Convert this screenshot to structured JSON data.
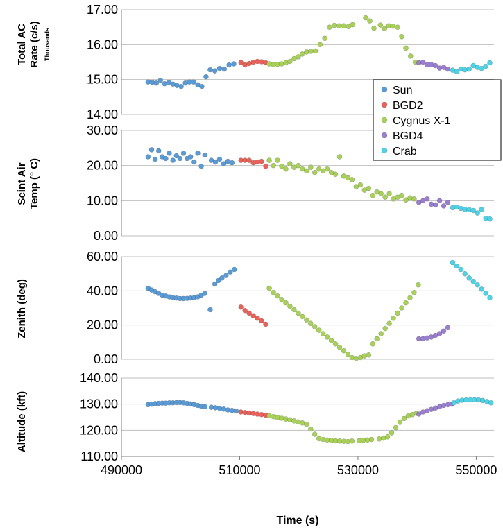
{
  "chart_data": {
    "type": "scatter",
    "xlabel": "Time (s)",
    "x_ticks": [
      "490000",
      "510000",
      "530000",
      "550000"
    ],
    "xlim": [
      490000,
      553000
    ],
    "colors": {
      "Sun": "#5b9bd5",
      "BGD2": "#e8625b",
      "Cygnus X-1": "#a9d05a",
      "BGD4": "#9a7fce",
      "Crab": "#4fd2e6"
    },
    "legend": {
      "placement": "right",
      "entries": [
        "Sun",
        "BGD2",
        "Cygnus X-1",
        "BGD4",
        "Crab"
      ]
    },
    "panels": [
      {
        "ylabel_line1": "Total AC",
        "ylabel_line2": "Rate (c/s)",
        "unit_note": "Thousands",
        "ylim": [
          14,
          17
        ],
        "y_ticks": [
          "17.00",
          "16.00",
          "15.00",
          "14.00"
        ],
        "series": [
          {
            "name": "Sun",
            "x": [
              494500,
              495200,
              495900,
              496600,
              497300,
              498000,
              498700,
              499400,
              500100,
              500800,
              501500,
              502200,
              502900,
              503600,
              504300,
              505000,
              505800,
              506600,
              507400,
              508200,
              509000
            ],
            "y": [
              14.93,
              14.92,
              14.9,
              14.98,
              14.88,
              14.92,
              14.87,
              14.83,
              14.8,
              14.9,
              14.93,
              14.93,
              14.85,
              14.8,
              15.08,
              15.28,
              15.25,
              15.32,
              15.3,
              15.42,
              15.45
            ]
          },
          {
            "name": "BGD2",
            "x": [
              510200,
              510900,
              511600,
              512300,
              513000,
              513700,
              514400
            ],
            "y": [
              15.49,
              15.42,
              15.46,
              15.5,
              15.52,
              15.51,
              15.48
            ]
          },
          {
            "name": "Cygnus X-1",
            "x": [
              515000,
              515700,
              516400,
              517100,
              517800,
              518500,
              519200,
              519900,
              520600,
              521300,
              522000,
              522800,
              523600,
              524400,
              525200,
              526000,
              526800,
              527600,
              528400,
              529100,
              531300,
              532000,
              532700,
              533800,
              534500,
              535200,
              535900,
              536700,
              537400,
              538100,
              538900,
              539700
            ],
            "y": [
              15.45,
              15.43,
              15.44,
              15.45,
              15.48,
              15.52,
              15.6,
              15.65,
              15.73,
              15.79,
              15.81,
              15.82,
              16.0,
              16.18,
              16.5,
              16.55,
              16.54,
              16.54,
              16.52,
              16.57,
              16.77,
              16.68,
              16.47,
              16.56,
              16.46,
              16.54,
              16.53,
              16.5,
              16.23,
              15.9,
              15.67,
              15.5
            ]
          },
          {
            "name": "BGD4",
            "x": [
              540300,
              541000,
              541700,
              542400,
              543100,
              543800,
              544500,
              545200
            ],
            "y": [
              15.48,
              15.5,
              15.43,
              15.43,
              15.4,
              15.33,
              15.35,
              15.3
            ]
          },
          {
            "name": "Crab",
            "x": [
              546000,
              546700,
              547400,
              548100,
              548800,
              549500,
              550200,
              550900,
              551600,
              552300
            ],
            "y": [
              15.27,
              15.23,
              15.3,
              15.28,
              15.3,
              15.4,
              15.35,
              15.32,
              15.38,
              15.48
            ]
          }
        ]
      },
      {
        "ylabel_line1": "Scint Air",
        "ylabel_line2": "Temp (° C)",
        "ylim": [
          0,
          30
        ],
        "y_ticks": [
          "30.00",
          "20.00",
          "10.00",
          "0.00"
        ],
        "series": [
          {
            "name": "Sun",
            "x": [
              494500,
              495100,
              495700,
              496300,
              496900,
              497500,
              498100,
              498700,
              499300,
              499900,
              500500,
              501100,
              501700,
              502300,
              502900,
              503500,
              504100,
              505200,
              505900,
              506600,
              507300,
              508000,
              508700
            ],
            "y": [
              22.5,
              24.5,
              21.8,
              24.2,
              22.5,
              22,
              23.5,
              21.5,
              22.8,
              22,
              23.5,
              22,
              22.5,
              21,
              23.5,
              19.8,
              23,
              21.5,
              21,
              21.8,
              20.5,
              21.2,
              20.8
            ]
          },
          {
            "name": "BGD2",
            "x": [
              510200,
              510900,
              511600,
              512300,
              513000,
              513700,
              514400
            ],
            "y": [
              21.5,
              21.5,
              21.5,
              20.8,
              21,
              21.2,
              19.8
            ]
          },
          {
            "name": "Cygnus X-1",
            "x": [
              515000,
              515700,
              516400,
              517100,
              517800,
              518500,
              519200,
              519900,
              520600,
              521300,
              522000,
              522700,
              523400,
              524100,
              524800,
              525500,
              526200,
              526900,
              527600,
              528300,
              529000,
              529700,
              530400,
              531100,
              531800,
              532500,
              533200,
              533900,
              534600,
              535300,
              536000,
              536700,
              537400,
              538100,
              538800,
              539500
            ],
            "y": [
              21.5,
              20,
              21.5,
              19.8,
              19,
              20.5,
              19.5,
              20,
              19,
              18.5,
              19.5,
              18,
              19,
              18.5,
              19,
              18,
              17.5,
              22.5,
              17,
              16.5,
              16,
              14,
              14.5,
              13,
              13.5,
              11.5,
              12.5,
              12,
              11,
              12,
              10.5,
              11,
              11.5,
              10.2,
              10.8,
              10.5
            ]
          },
          {
            "name": "BGD4",
            "x": [
              540300,
              541000,
              541700,
              542400,
              543100,
              543800,
              544500,
              545200
            ],
            "y": [
              9.5,
              10,
              10.5,
              9,
              8.8,
              10,
              8.5,
              9.5
            ]
          },
          {
            "name": "Crab",
            "x": [
              546000,
              546700,
              547400,
              548100,
              548800,
              549500,
              550200,
              550900,
              551600,
              552300
            ],
            "y": [
              8,
              8.2,
              7.8,
              7.5,
              7.5,
              7.2,
              6.5,
              7.5,
              5,
              4.8
            ]
          }
        ]
      },
      {
        "ylabel_line1": "Zenith (deg)",
        "ylim": [
          0,
          60
        ],
        "y_ticks": [
          "60.00",
          "40.00",
          "20.00",
          "0.00"
        ],
        "series": [
          {
            "name": "Sun",
            "x": [
              494500,
              495100,
              495700,
              496300,
              496900,
              497500,
              498100,
              498700,
              499300,
              499900,
              500500,
              501100,
              501700,
              502300,
              502900,
              503500,
              504100,
              505000,
              505800,
              506400,
              507000,
              507700,
              508400,
              509100
            ],
            "y": [
              41.5,
              40.5,
              39.5,
              38.5,
              37.5,
              37,
              36.5,
              36,
              35.8,
              35.5,
              35.5,
              35.6,
              35.8,
              36,
              36.5,
              37.5,
              38.5,
              29,
              44,
              46,
              47.5,
              49,
              51,
              52.5
            ]
          },
          {
            "name": "BGD2",
            "x": [
              510200,
              510900,
              511600,
              512300,
              513000,
              513700,
              514400
            ],
            "y": [
              30.5,
              28.5,
              27,
              25.5,
              24,
              22.5,
              20.5
            ]
          },
          {
            "name": "Cygnus X-1",
            "x": [
              515000,
              515700,
              516400,
              517100,
              517800,
              518500,
              519200,
              519900,
              520600,
              521300,
              522000,
              522700,
              523400,
              524100,
              524800,
              525500,
              526200,
              526900,
              527600,
              528300,
              529000,
              529700,
              530400,
              531100,
              531800,
              532500,
              533200,
              533900,
              534600,
              535300,
              536000,
              536700,
              537400,
              538100,
              538800,
              539500,
              540200
            ],
            "y": [
              41.5,
              39,
              37,
              35,
              33,
              31,
              29,
              27,
              25,
              23,
              21,
              19,
              17,
              15,
              13,
              11,
              9,
              7,
              5,
              3,
              1,
              0.5,
              1,
              2,
              2.5,
              9,
              12,
              15,
              18,
              21,
              24,
              27,
              30,
              33,
              36,
              39,
              43.5
            ]
          },
          {
            "name": "BGD4",
            "x": [
              540300,
              541000,
              541700,
              542400,
              543100,
              543800,
              544500,
              545200
            ],
            "y": [
              12,
              12,
              12.5,
              13,
              14,
              15,
              16.5,
              18.5
            ]
          },
          {
            "name": "Crab",
            "x": [
              546000,
              546700,
              547400,
              548100,
              548800,
              549500,
              550200,
              550900,
              551600,
              552300
            ],
            "y": [
              56.5,
              54.5,
              52.5,
              50,
              47.5,
              45.5,
              43.5,
              41,
              38.5,
              36
            ]
          }
        ]
      },
      {
        "ylabel_line1": "Altitude (kft)",
        "ylim": [
          110,
          140
        ],
        "y_ticks": [
          "140.00",
          "130.00",
          "120.00",
          "110.00"
        ],
        "series": [
          {
            "name": "Sun",
            "x": [
              494500,
              495100,
              495700,
              496300,
              496900,
              497500,
              498100,
              498700,
              499300,
              499900,
              500500,
              501100,
              501700,
              502300,
              502900,
              503500,
              504100,
              505200,
              505900,
              506600,
              507300,
              508000,
              508700,
              509400
            ],
            "y": [
              129.8,
              130,
              130.2,
              130.3,
              130.4,
              130.4,
              130.5,
              130.5,
              130.6,
              130.6,
              130.5,
              130.3,
              130.1,
              129.8,
              129.5,
              129.2,
              129,
              128.8,
              128.6,
              128.4,
              128.1,
              127.8,
              127.6,
              127.4
            ]
          },
          {
            "name": "BGD2",
            "x": [
              510200,
              510900,
              511600,
              512300,
              513000,
              513700,
              514400
            ],
            "y": [
              127,
              126.8,
              126.6,
              126.4,
              126.2,
              126,
              125.8
            ]
          },
          {
            "name": "Cygnus X-1",
            "x": [
              515000,
              515700,
              516400,
              517100,
              517800,
              518500,
              519200,
              519900,
              520600,
              521300,
              522000,
              522700,
              523400,
              524100,
              524800,
              525500,
              526200,
              526900,
              527600,
              528300,
              529000,
              530200,
              530900,
              531600,
              532300,
              533600,
              534300,
              535000,
              535700,
              536400,
              537100,
              537800,
              538500,
              539200,
              539900
            ],
            "y": [
              125.6,
              125.2,
              124.9,
              124.6,
              124.3,
              124,
              123.6,
              123.2,
              122.8,
              122.3,
              120.5,
              118.5,
              116.8,
              116.5,
              116.3,
              116.1,
              116,
              115.9,
              115.8,
              115.7,
              115.9,
              116,
              116.2,
              116.3,
              116.5,
              116.7,
              117,
              117.5,
              119,
              121,
              123,
              124.5,
              125.5,
              126,
              126.5
            ]
          },
          {
            "name": "BGD4",
            "x": [
              540300,
              541000,
              541700,
              542400,
              543100,
              543800,
              544500,
              545200,
              545900
            ],
            "y": [
              126.2,
              127,
              127.5,
              128,
              128.5,
              129,
              129.5,
              129.8,
              130
            ]
          },
          {
            "name": "Crab",
            "x": [
              546200,
              546900,
              547600,
              548300,
              549000,
              549700,
              550400,
              551100,
              551800,
              552500
            ],
            "y": [
              130.5,
              131.2,
              131.5,
              131.6,
              131.6,
              131.7,
              131.6,
              131.4,
              131,
              130.5
            ]
          }
        ]
      }
    ]
  }
}
